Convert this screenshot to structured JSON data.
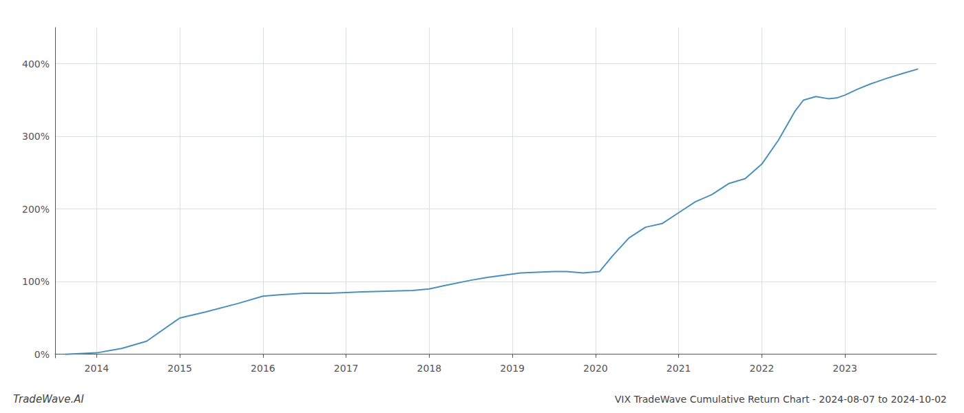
{
  "chart_data": {
    "type": "line",
    "title": "VIX TradeWave Cumulative Return Chart - 2024-08-07 to 2024-10-02",
    "annotations": [
      "TradeWave.AI"
    ],
    "x": [
      2013.62,
      2014.0,
      2014.3,
      2014.6,
      2015.0,
      2015.3,
      2015.7,
      2016.0,
      2016.2,
      2016.5,
      2016.8,
      2017.0,
      2017.2,
      2017.5,
      2017.8,
      2018.0,
      2018.2,
      2018.5,
      2018.7,
      2018.9,
      2019.1,
      2019.3,
      2019.5,
      2019.65,
      2019.75,
      2019.85,
      2019.95,
      2020.05,
      2020.2,
      2020.4,
      2020.6,
      2020.8,
      2021.0,
      2021.2,
      2021.4,
      2021.6,
      2021.8,
      2022.0,
      2022.2,
      2022.4,
      2022.5,
      2022.65,
      2022.8,
      2022.9,
      2023.0,
      2023.15,
      2023.3,
      2023.5,
      2023.7,
      2023.88
    ],
    "values": [
      0.0,
      0.02,
      0.08,
      0.18,
      0.5,
      0.58,
      0.7,
      0.8,
      0.82,
      0.84,
      0.84,
      0.85,
      0.86,
      0.87,
      0.88,
      0.9,
      0.95,
      1.02,
      1.06,
      1.09,
      1.12,
      1.13,
      1.14,
      1.14,
      1.13,
      1.12,
      1.13,
      1.14,
      1.35,
      1.6,
      1.75,
      1.8,
      1.95,
      2.1,
      2.2,
      2.35,
      2.42,
      2.62,
      2.95,
      3.35,
      3.5,
      3.55,
      3.52,
      3.53,
      3.57,
      3.65,
      3.72,
      3.8,
      3.87,
      3.93
    ],
    "color": "#4a90b8",
    "xlim": [
      2013.5,
      2024.1
    ],
    "ylim": [
      -0.05,
      4.5
    ],
    "xticks": [
      2014,
      2015,
      2016,
      2017,
      2018,
      2019,
      2020,
      2021,
      2022,
      2023
    ],
    "yticks": [
      {
        "value": 0.0,
        "label": "0%"
      },
      {
        "value": 1.0,
        "label": "100%"
      },
      {
        "value": 2.0,
        "label": "200%"
      },
      {
        "value": 3.0,
        "label": "300%"
      },
      {
        "value": 4.0,
        "label": "400%"
      }
    ],
    "grid": true
  }
}
